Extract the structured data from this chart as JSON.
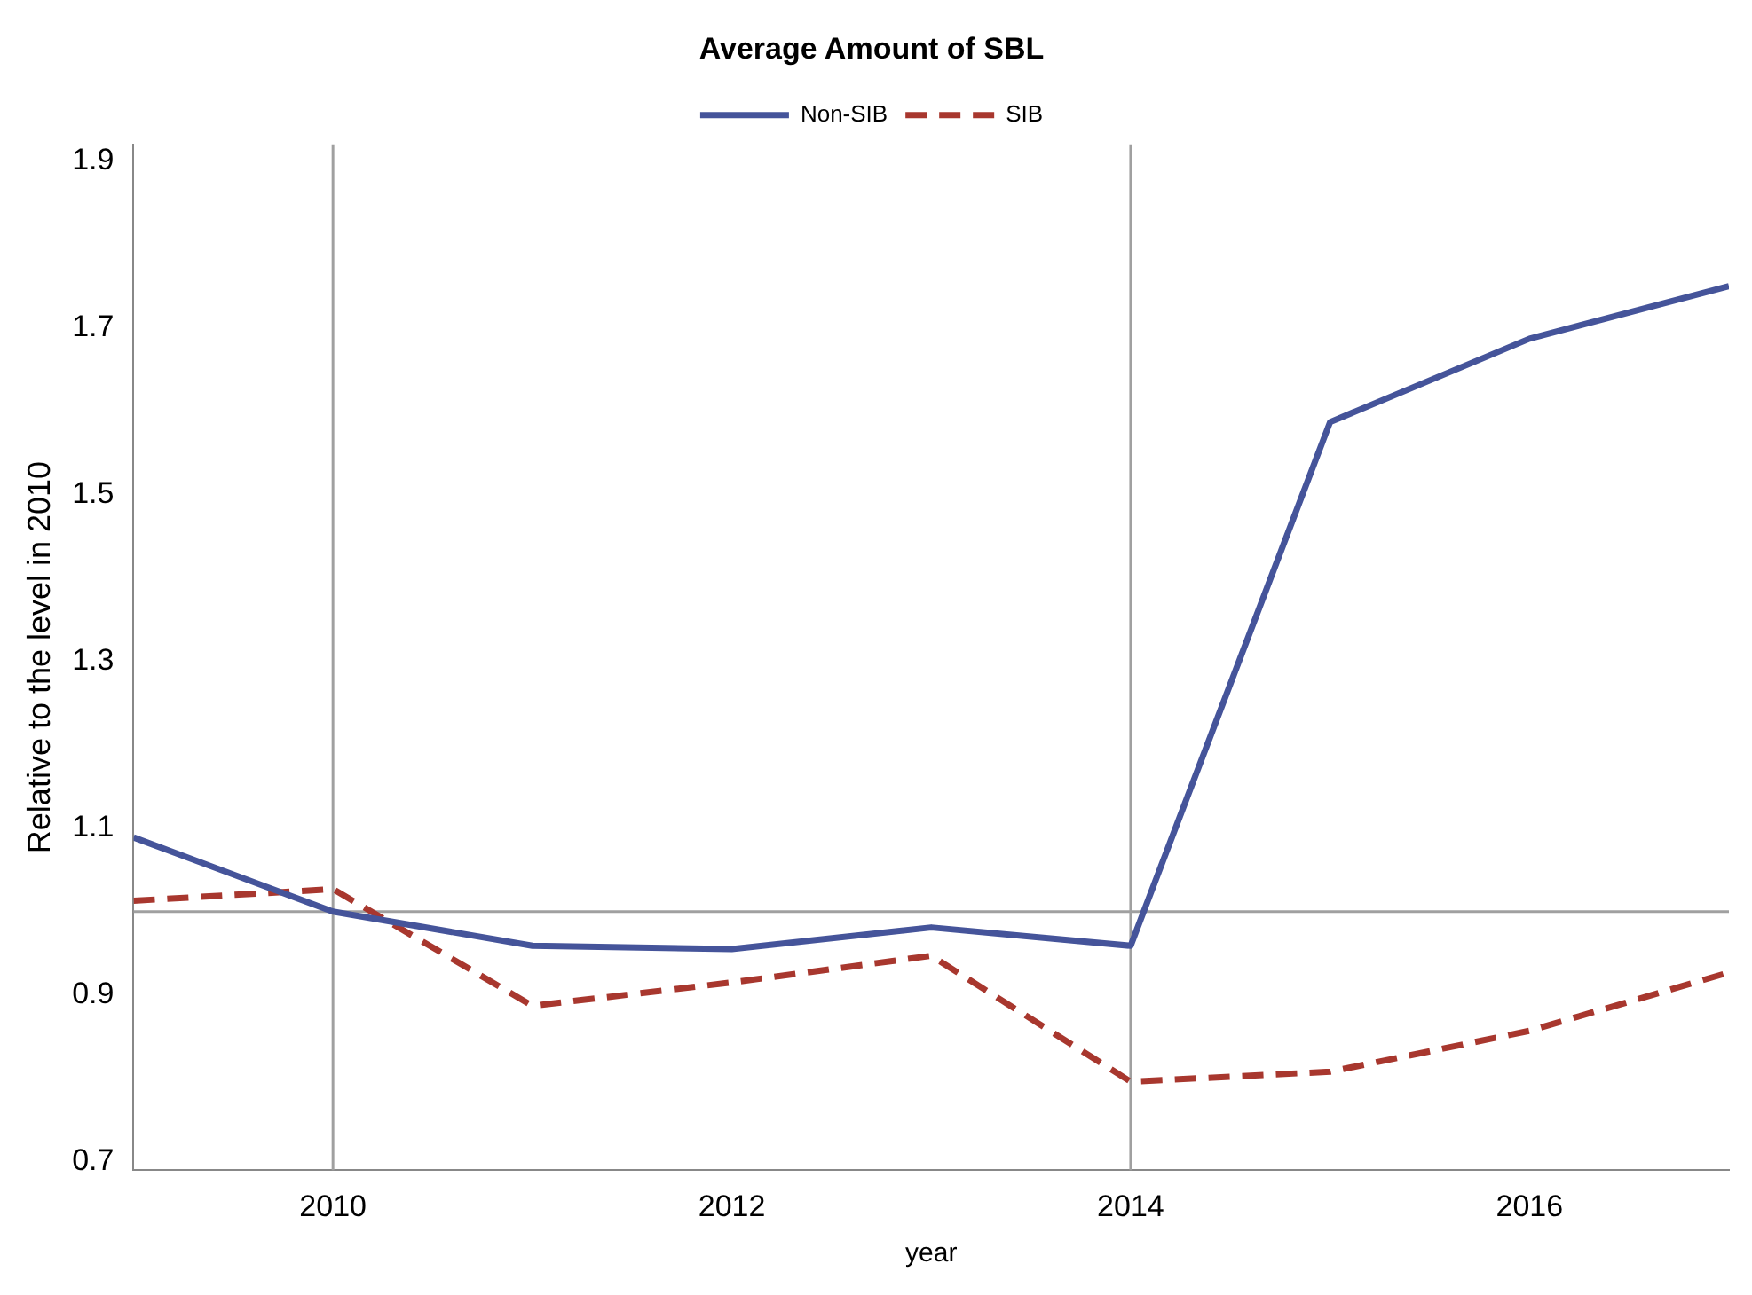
{
  "chart_data": {
    "type": "line",
    "title": "Average Amount of SBL",
    "xlabel": "year",
    "ylabel": "Relative to the level in 2010",
    "x": [
      2009,
      2010,
      2011,
      2012,
      2013,
      2014,
      2015,
      2016,
      2017
    ],
    "series": [
      {
        "name": "Non-SIB",
        "color": "#45549a",
        "line_style": "solid",
        "values": [
          1.089,
          1.0,
          0.959,
          0.955,
          0.981,
          0.959,
          1.587,
          1.687,
          1.75
        ]
      },
      {
        "name": "SIB",
        "color": "#a8372e",
        "line_style": "dashed",
        "values": [
          1.013,
          1.027,
          0.887,
          0.915,
          0.947,
          0.796,
          0.808,
          0.857,
          0.927
        ]
      }
    ],
    "xlim": [
      2009,
      2017
    ],
    "xticks": [
      2010,
      2012,
      2014,
      2016
    ],
    "ylim": [
      0.69,
      1.92
    ],
    "yticks": [
      0.7,
      0.9,
      1.1,
      1.3,
      1.5,
      1.7,
      1.9
    ],
    "ref_lines": [
      {
        "axis": "x",
        "value": 2010,
        "color": "#a0a0a0"
      },
      {
        "axis": "x",
        "value": 2014,
        "color": "#a0a0a0"
      },
      {
        "axis": "y",
        "value": 1.0,
        "color": "#a0a0a0"
      }
    ],
    "grid": false,
    "legend": "top",
    "marker": "none"
  }
}
